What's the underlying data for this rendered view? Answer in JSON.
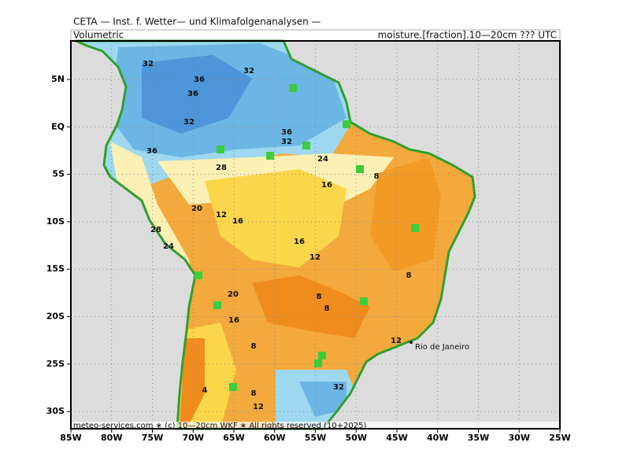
{
  "header": {
    "title": "CETA — Inst. f. Wetter— und Klimafolgenanalysen —",
    "left": "Volumetric",
    "right": "moisture.[fraction].10—20cm ??? UTC"
  },
  "map": {
    "lon_labels": [
      "85W",
      "80W",
      "75W",
      "70W",
      "65W",
      "60W",
      "55W",
      "50W",
      "45W",
      "40W",
      "35W",
      "30W",
      "25W"
    ],
    "lat_labels": [
      "5N",
      "EQ",
      "5S",
      "10S",
      "15S",
      "20S",
      "25S",
      "30S"
    ],
    "contour_labels": [
      32,
      36,
      32,
      36,
      32,
      36,
      28,
      36,
      32,
      24,
      16,
      8,
      20,
      12,
      16,
      28,
      24,
      16,
      12,
      8,
      20,
      8,
      8,
      16,
      8,
      12,
      32,
      8,
      12,
      4
    ],
    "city": "Rio de Janeiro"
  },
  "footer": "meteo-services.com ∗ (c) 10—20cm WKF ∗ All rights reserved (10+2025)"
}
